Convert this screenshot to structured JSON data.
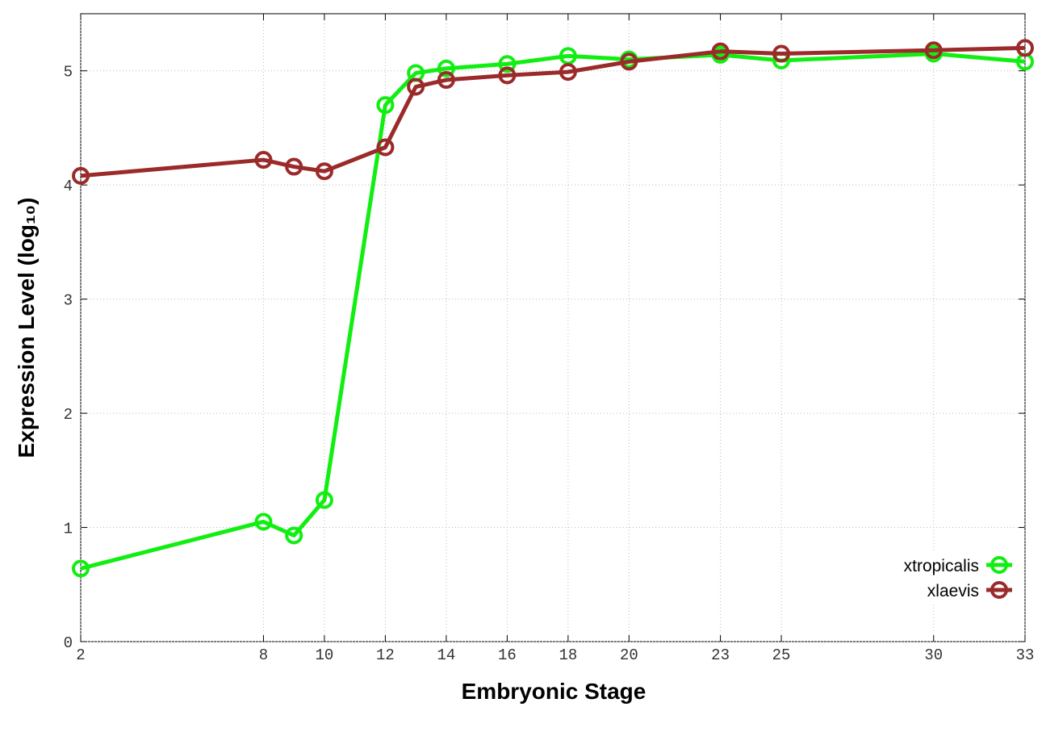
{
  "chart_data": {
    "type": "line",
    "x_label": "Embryonic Stage",
    "y_label": "Expression Level (log₁₀)",
    "x": [
      2,
      8,
      9,
      10,
      12,
      13,
      14,
      16,
      18,
      20,
      23,
      25,
      30,
      33
    ],
    "series": [
      {
        "name": "xtropicalis",
        "color": "#11ee11",
        "values": [
          0.64,
          1.05,
          0.93,
          1.24,
          4.7,
          4.98,
          5.02,
          5.06,
          5.13,
          5.1,
          5.14,
          5.09,
          5.15,
          5.08
        ]
      },
      {
        "name": "xlaevis",
        "color": "#9b2a2a",
        "values": [
          4.08,
          4.22,
          4.16,
          4.12,
          4.33,
          4.86,
          4.92,
          4.96,
          4.99,
          5.08,
          5.17,
          5.15,
          5.18,
          5.2
        ]
      }
    ],
    "xlim": [
      2,
      33
    ],
    "xticks": [
      2,
      8,
      10,
      12,
      14,
      16,
      18,
      20,
      23,
      25,
      30,
      33
    ],
    "ylim": [
      0,
      5.5
    ],
    "yticks": [
      0,
      1,
      2,
      3,
      4,
      5
    ],
    "grid": true,
    "legend": "lower right"
  }
}
